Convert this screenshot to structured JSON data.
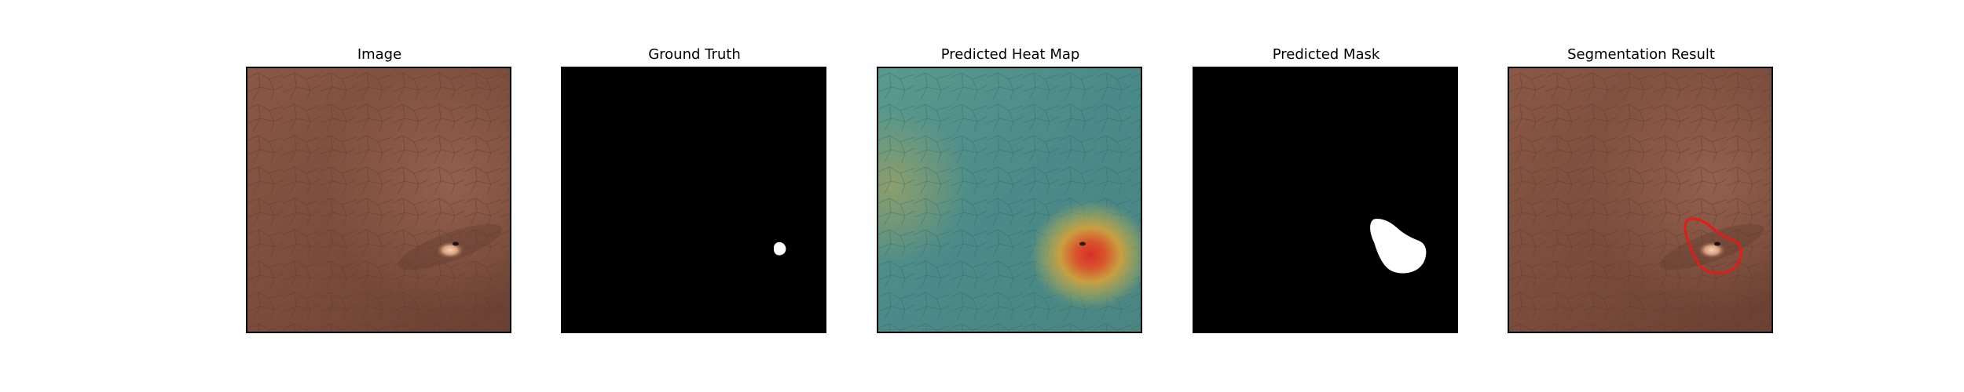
{
  "figure": {
    "panels": [
      {
        "title": "Image"
      },
      {
        "title": "Ground Truth"
      },
      {
        "title": "Predicted Heat Map"
      },
      {
        "title": "Predicted Mask"
      },
      {
        "title": "Segmentation Result"
      }
    ]
  },
  "colors": {
    "leather": "#7e5040",
    "leather_dark": "#5f3a2f",
    "mask_background": "#000000",
    "mask_foreground": "#ffffff",
    "heatmap_base": "#4f8f88",
    "heatmap_hot": "#d23a2a",
    "contour": "#e41b17"
  }
}
